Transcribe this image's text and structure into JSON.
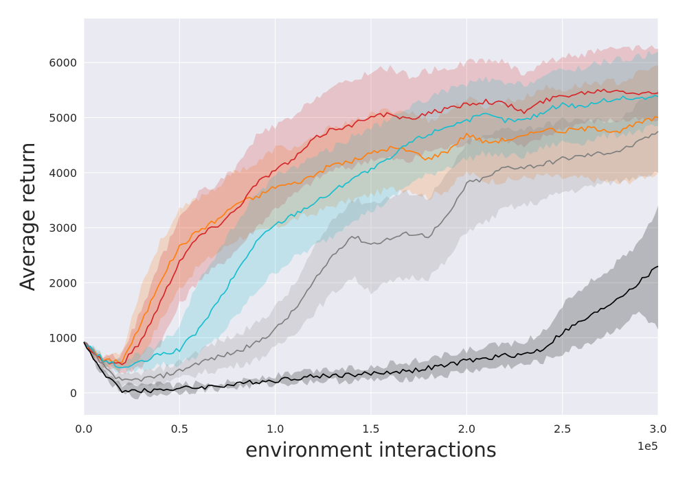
{
  "chart_data": {
    "type": "line",
    "title": "",
    "xlabel": "environment interactions",
    "ylabel": "Average return",
    "x_offset_label": "1e5",
    "xlim": [
      0,
      300000
    ],
    "ylim": [
      -400,
      6800
    ],
    "grid": true,
    "legend": "none",
    "x_ticks": [
      0,
      50000,
      100000,
      150000,
      200000,
      250000,
      300000
    ],
    "x_tick_labels": [
      "0.0",
      "0.5",
      "1.0",
      "1.5",
      "2.0",
      "2.5",
      "3.0"
    ],
    "y_ticks": [
      0,
      1000,
      2000,
      3000,
      4000,
      5000,
      6000
    ],
    "y_tick_labels": [
      "0",
      "1000",
      "2000",
      "3000",
      "4000",
      "5000",
      "6000"
    ],
    "x": [
      0,
      10000,
      20000,
      30000,
      40000,
      50000,
      60000,
      70000,
      80000,
      90000,
      100000,
      110000,
      120000,
      130000,
      140000,
      150000,
      160000,
      170000,
      180000,
      190000,
      200000,
      210000,
      220000,
      230000,
      240000,
      250000,
      260000,
      270000,
      280000,
      290000,
      300000
    ],
    "series": [
      {
        "color": "#ff7f0e",
        "values": [
          920,
          580,
          580,
          1250,
          2050,
          2650,
          2950,
          3150,
          3450,
          3550,
          3750,
          3800,
          3950,
          4150,
          4200,
          4350,
          4450,
          4400,
          4250,
          4400,
          4700,
          4550,
          4600,
          4650,
          4800,
          4750,
          4800,
          4800,
          4750,
          4900,
          5000
        ],
        "lower": [
          900,
          500,
          430,
          650,
          1300,
          1900,
          2300,
          2550,
          2800,
          2900,
          3000,
          3150,
          3250,
          3400,
          3500,
          3600,
          3700,
          3700,
          3550,
          3700,
          4000,
          3850,
          3850,
          3900,
          3950,
          3900,
          3900,
          3850,
          3800,
          3900,
          4000
        ],
        "upper": [
          940,
          650,
          760,
          1950,
          2750,
          3300,
          3550,
          3750,
          4050,
          4150,
          4450,
          4450,
          4600,
          4850,
          4900,
          5050,
          5150,
          5100,
          4950,
          5100,
          5350,
          5200,
          5300,
          5350,
          5550,
          5500,
          5600,
          5650,
          5650,
          5800,
          5950
        ]
      },
      {
        "color": "#d62728",
        "values": [
          920,
          580,
          520,
          950,
          1650,
          2400,
          2850,
          3050,
          3350,
          3800,
          4050,
          4250,
          4600,
          4800,
          4850,
          5050,
          5050,
          4950,
          5100,
          5150,
          5250,
          5300,
          5250,
          5100,
          5300,
          5400,
          5450,
          5500,
          5500,
          5450,
          5450
        ],
        "lower": [
          900,
          500,
          380,
          450,
          900,
          1600,
          2050,
          2300,
          2600,
          3000,
          3350,
          3600,
          3850,
          4050,
          4100,
          4250,
          4250,
          4200,
          4400,
          4450,
          4550,
          4650,
          4600,
          4450,
          4650,
          4800,
          4900,
          4950,
          4950,
          4950,
          4950
        ],
        "upper": [
          940,
          660,
          680,
          1500,
          2400,
          3150,
          3650,
          3800,
          4100,
          4650,
          4850,
          5000,
          5350,
          5550,
          5650,
          5850,
          5900,
          5750,
          5850,
          5900,
          6000,
          6050,
          6000,
          5800,
          6000,
          6100,
          6150,
          6200,
          6250,
          6250,
          6250
        ]
      },
      {
        "color": "#17becf",
        "values": [
          920,
          600,
          450,
          550,
          700,
          780,
          1150,
          1650,
          2200,
          2750,
          3050,
          3250,
          3450,
          3650,
          3900,
          4050,
          4250,
          4550,
          4700,
          4850,
          4950,
          5050,
          4950,
          4950,
          5100,
          5250,
          5200,
          5300,
          5350,
          5350,
          5380
        ],
        "lower": [
          900,
          520,
          380,
          430,
          520,
          520,
          700,
          1000,
          1400,
          1850,
          2200,
          2450,
          2650,
          2850,
          3150,
          3300,
          3500,
          3800,
          3950,
          4100,
          4250,
          4350,
          4300,
          4300,
          4450,
          4550,
          4550,
          4650,
          4700,
          4750,
          4850
        ],
        "upper": [
          940,
          680,
          560,
          720,
          900,
          1150,
          2050,
          2550,
          3100,
          3600,
          3950,
          4100,
          4300,
          4450,
          4650,
          4800,
          4950,
          5200,
          5350,
          5500,
          5600,
          5700,
          5600,
          5600,
          5750,
          5850,
          5900,
          6000,
          6050,
          6100,
          6200
        ]
      },
      {
        "color": "#7f7f7f",
        "values": [
          920,
          500,
          200,
          250,
          300,
          400,
          550,
          650,
          750,
          900,
          1150,
          1500,
          2000,
          2500,
          2850,
          2700,
          2800,
          2900,
          2850,
          3200,
          3800,
          3900,
          4100,
          4100,
          4150,
          4250,
          4300,
          4350,
          4400,
          4550,
          4750
        ],
        "lower": [
          900,
          430,
          130,
          150,
          180,
          250,
          350,
          420,
          500,
          600,
          800,
          1100,
          1450,
          1800,
          2100,
          1850,
          2000,
          2100,
          2100,
          2400,
          2950,
          3100,
          3350,
          3400,
          3500,
          3650,
          3700,
          3800,
          3850,
          3950,
          4000
        ],
        "upper": [
          940,
          570,
          290,
          370,
          430,
          560,
          770,
          920,
          1050,
          1250,
          1550,
          1950,
          2600,
          3150,
          3500,
          3450,
          3550,
          3650,
          3550,
          3950,
          4550,
          4650,
          4800,
          4800,
          4850,
          4950,
          4950,
          4950,
          4950,
          5250,
          5500
        ]
      },
      {
        "color": "#000000",
        "values": [
          920,
          350,
          50,
          30,
          60,
          80,
          100,
          130,
          150,
          200,
          230,
          270,
          300,
          320,
          330,
          350,
          380,
          400,
          450,
          500,
          580,
          620,
          680,
          700,
          800,
          1100,
          1300,
          1500,
          1750,
          2000,
          2300
        ],
        "lower": [
          900,
          300,
          -30,
          -60,
          -20,
          20,
          50,
          80,
          100,
          140,
          160,
          190,
          210,
          220,
          220,
          230,
          250,
          260,
          290,
          320,
          400,
          430,
          480,
          500,
          580,
          720,
          850,
          1000,
          1200,
          1450,
          1150
        ],
        "upper": [
          940,
          400,
          130,
          120,
          140,
          150,
          160,
          190,
          210,
          270,
          310,
          360,
          400,
          430,
          450,
          480,
          520,
          560,
          620,
          690,
          770,
          820,
          900,
          930,
          1100,
          1600,
          1900,
          2150,
          2400,
          2700,
          3400
        ]
      }
    ]
  }
}
